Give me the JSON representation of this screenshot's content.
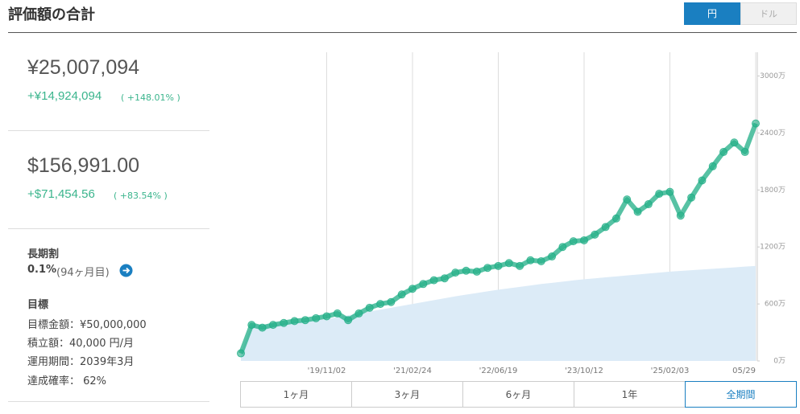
{
  "header": {
    "title": "評価額の合計",
    "currency_toggle": [
      "円",
      "ドル"
    ]
  },
  "summary": {
    "jpy": {
      "total": "¥25,007,094",
      "gain": "+¥14,924,094",
      "pct": "( +148.01% )"
    },
    "usd": {
      "total": "$156,991.00",
      "gain": "+$71,454.56",
      "pct": "( +83.54% )"
    }
  },
  "long_term": {
    "title": "長期割",
    "rate": "0.1%",
    "months": "(94ヶ月目)"
  },
  "goal": {
    "title": "目標",
    "items": [
      "目標金額：¥50,000,000",
      "積立額：40,000 円/月",
      "運用期間：2039年3月",
      "達成確率： 62%"
    ]
  },
  "chart_data": {
    "type": "line",
    "categories": [
      null,
      null,
      null,
      null,
      null,
      null,
      null,
      null,
      "'19/11/02",
      null,
      null,
      null,
      null,
      null,
      null,
      null,
      "'21/02/24",
      null,
      null,
      null,
      null,
      null,
      null,
      null,
      "'22/06/19",
      null,
      null,
      null,
      null,
      null,
      null,
      null,
      "'23/10/12",
      null,
      null,
      null,
      null,
      null,
      null,
      null,
      "'25/02/03",
      null,
      null,
      null,
      null,
      null,
      null,
      null,
      "05/29"
    ],
    "series": [
      {
        "color": "#1fae86",
        "values": [
          80,
          380,
          350,
          380,
          400,
          420,
          430,
          450,
          470,
          500,
          430,
          500,
          560,
          600,
          620,
          700,
          760,
          810,
          850,
          870,
          930,
          950,
          940,
          980,
          1000,
          1030,
          1000,
          1060,
          1050,
          1100,
          1200,
          1260,
          1270,
          1330,
          1410,
          1500,
          1700,
          1570,
          1650,
          1760,
          1780,
          1530,
          1720,
          1900,
          2050,
          2200,
          2300,
          2200,
          2500
        ]
      },
      {
        "color": "#dcebf7",
        "fill": true,
        "values": [
          80,
          380,
          385,
          390,
          400,
          410,
          420,
          430,
          440,
          460,
          480,
          500,
          520,
          540,
          560,
          580,
          600,
          620,
          640,
          660,
          680,
          698,
          715,
          733,
          750,
          765,
          780,
          795,
          810,
          822,
          835,
          848,
          860,
          870,
          880,
          890,
          900,
          910,
          920,
          930,
          940,
          948,
          955,
          963,
          970,
          978,
          985,
          993,
          1000
        ]
      }
    ],
    "ylim": [
      0,
      3250
    ],
    "yticks": [
      {
        "value": 0,
        "label": "0万"
      },
      {
        "value": 600,
        "label": "600万"
      },
      {
        "value": 1200,
        "label": "1200万"
      },
      {
        "value": 1800,
        "label": "1800万"
      },
      {
        "value": 2400,
        "label": "2400万"
      },
      {
        "value": 3000,
        "label": "3000万"
      }
    ],
    "grid": true
  },
  "period_buttons": [
    "1ヶ月",
    "3ヶ月",
    "6ヶ月",
    "1年",
    "全期間"
  ]
}
